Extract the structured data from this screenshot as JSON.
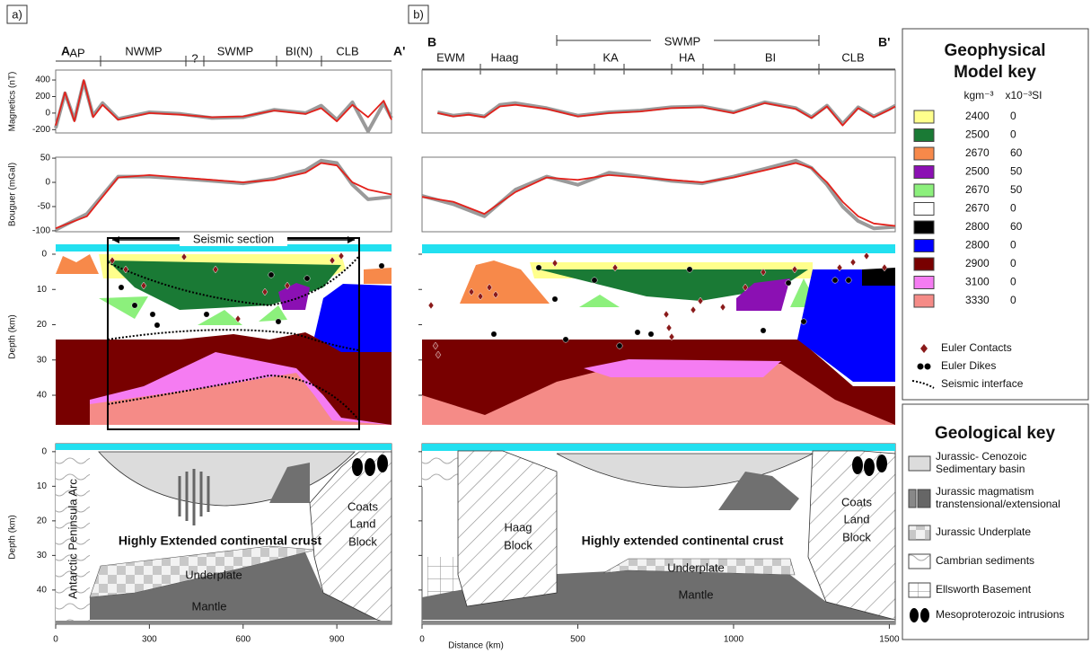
{
  "chart_data": [
    {
      "type": "line",
      "ylabel": "Magnetics (nT)",
      "xlim": [
        0,
        1075
      ],
      "ylim": [
        -240,
        520
      ],
      "yticks": [
        -200,
        0,
        200,
        400
      ],
      "x": [
        0,
        30,
        60,
        90,
        120,
        150,
        200,
        300,
        400,
        500,
        600,
        700,
        800,
        850,
        900,
        950,
        1000,
        1050,
        1075
      ],
      "series": [
        {
          "color": "#9a9a9a",
          "values": [
            -180,
            240,
            -80,
            380,
            -30,
            120,
            -70,
            10,
            -10,
            -60,
            -50,
            40,
            0,
            90,
            -80,
            130,
            -220,
            120,
            -60
          ]
        },
        {
          "color": "#e3211b",
          "values": [
            -150,
            250,
            -100,
            400,
            -50,
            100,
            -80,
            0,
            -20,
            -50,
            -40,
            30,
            -10,
            60,
            -100,
            100,
            -50,
            150,
            -80
          ]
        }
      ]
    },
    {
      "type": "line",
      "ylabel": "Bouguer (mGal)",
      "xlim": [
        0,
        1075
      ],
      "ylim": [
        -102,
        52
      ],
      "yticks": [
        -100,
        -50,
        0,
        50
      ],
      "x": [
        0,
        100,
        200,
        300,
        400,
        500,
        600,
        700,
        800,
        850,
        900,
        950,
        1000,
        1075
      ],
      "series": [
        {
          "color": "#9a9a9a",
          "values": [
            -98,
            -65,
            12,
            12,
            8,
            3,
            -2,
            8,
            25,
            45,
            40,
            -5,
            -35,
            -30
          ]
        },
        {
          "color": "#e3211b",
          "values": [
            -95,
            -70,
            10,
            15,
            10,
            5,
            0,
            5,
            20,
            40,
            35,
            0,
            -15,
            -25
          ]
        }
      ]
    },
    {
      "type": "line",
      "xlim": [
        0,
        1519
      ],
      "ylim": [
        -240,
        520
      ],
      "x": [
        50,
        100,
        150,
        200,
        250,
        300,
        400,
        500,
        600,
        700,
        800,
        900,
        1000,
        1100,
        1200,
        1250,
        1300,
        1350,
        1400,
        1450,
        1500,
        1519
      ],
      "series": [
        {
          "color": "#9a9a9a",
          "values": [
            10,
            -30,
            -10,
            -40,
            100,
            120,
            60,
            -30,
            10,
            30,
            70,
            80,
            10,
            130,
            60,
            -50,
            90,
            -130,
            70,
            -40,
            50,
            90
          ]
        },
        {
          "color": "#e3211b",
          "values": [
            0,
            -40,
            -20,
            -50,
            80,
            100,
            50,
            -40,
            0,
            20,
            60,
            70,
            0,
            120,
            50,
            -60,
            80,
            -150,
            60,
            -50,
            40,
            80
          ]
        }
      ]
    },
    {
      "type": "line",
      "xlim": [
        0,
        1519
      ],
      "ylim": [
        -102,
        52
      ],
      "x": [
        0,
        100,
        200,
        300,
        400,
        500,
        600,
        700,
        800,
        900,
        1000,
        1100,
        1200,
        1250,
        1300,
        1350,
        1400,
        1450,
        1519
      ],
      "series": [
        {
          "color": "#9a9a9a",
          "values": [
            -28,
            -45,
            -70,
            -15,
            12,
            -5,
            20,
            12,
            3,
            -2,
            12,
            28,
            45,
            30,
            -5,
            -50,
            -80,
            -95,
            -92
          ]
        },
        {
          "color": "#e3211b",
          "values": [
            -30,
            -40,
            -65,
            -20,
            10,
            5,
            15,
            10,
            5,
            0,
            10,
            25,
            40,
            30,
            0,
            -40,
            -70,
            -85,
            -90
          ]
        }
      ]
    }
  ],
  "figure": {
    "panel_a": {
      "label": "a)",
      "start": "A",
      "end": "A'",
      "provinces": [
        "AP",
        "NWMP",
        "?",
        "SWMP",
        "BI(N)",
        "CLB"
      ],
      "seismic_label": "Seismic section",
      "xlim": [
        0,
        1075
      ],
      "xticks": [
        0,
        300,
        600,
        900
      ],
      "arc": "Antarctic Peninsula Arc",
      "crust": "Highly Extended continental crust",
      "underplate": "Underplate",
      "mantle": "Mantle",
      "block": [
        "Coats",
        "Land",
        "Block"
      ]
    },
    "panel_b": {
      "label": "b)",
      "start": "B",
      "end": "B'",
      "provinces": [
        "EWM",
        "Haag",
        "KA",
        "HA",
        "BI",
        "CLB"
      ],
      "group": "SWMP",
      "xlim": [
        0,
        1519
      ],
      "xticks": [
        0,
        500,
        1000,
        1500
      ],
      "xlabel": "Distance (km)",
      "haag": [
        "Haag",
        "Block"
      ],
      "crust": "Highly extended continental crust",
      "underplate": "Underplate",
      "mantle": "Mantle",
      "block": [
        "Coats",
        "Land",
        "Block"
      ]
    },
    "model_depth": {
      "label": "Depth (km)",
      "ylim": [
        -2.8,
        48.4
      ],
      "ticks": [
        0,
        10,
        20,
        30,
        40
      ]
    },
    "section_depth": {
      "label": "Depth (km)",
      "ylim": [
        -2.3,
        49.9
      ],
      "ticks": [
        0,
        10,
        20,
        30,
        40
      ]
    },
    "geophysical_key": {
      "title": [
        "Geophysical",
        "Model key"
      ],
      "density_unit": "kgm⁻³",
      "susceptibility_unit": "x10⁻³SI",
      "rows": [
        {
          "density": 2400,
          "susceptibility": 0,
          "color": "#ffff8c"
        },
        {
          "density": 2500,
          "susceptibility": 0,
          "color": "#1a7a35"
        },
        {
          "density": 2670,
          "susceptibility": 60,
          "color": "#f7894a"
        },
        {
          "density": 2500,
          "susceptibility": 50,
          "color": "#8b10b3"
        },
        {
          "density": 2670,
          "susceptibility": 50,
          "color": "#8cf07c"
        },
        {
          "density": 2670,
          "susceptibility": 0,
          "color": "#ffffff"
        },
        {
          "density": 2800,
          "susceptibility": 60,
          "color": "#000000"
        },
        {
          "density": 2800,
          "susceptibility": 0,
          "color": "#0000ff"
        },
        {
          "density": 2900,
          "susceptibility": 0,
          "color": "#780000"
        },
        {
          "density": 3100,
          "susceptibility": 0,
          "color": "#f57cf2"
        },
        {
          "density": 3330,
          "susceptibility": 0,
          "color": "#f58b87"
        }
      ],
      "symbols": [
        "Euler Contacts",
        "Euler Dikes",
        "Seismic interface"
      ]
    },
    "geological_key": {
      "title": "Geological key",
      "items": [
        [
          "Jurassic- Cenozoic",
          "Sedimentary basin"
        ],
        [
          "Jurassic magmatism",
          "transtensional/extensional"
        ],
        [
          "Jurassic Underplate"
        ],
        [
          "Cambrian sediments"
        ],
        [
          "Ellsworth Basement"
        ],
        [
          "Mesoproterozoic intrusions"
        ]
      ]
    }
  }
}
